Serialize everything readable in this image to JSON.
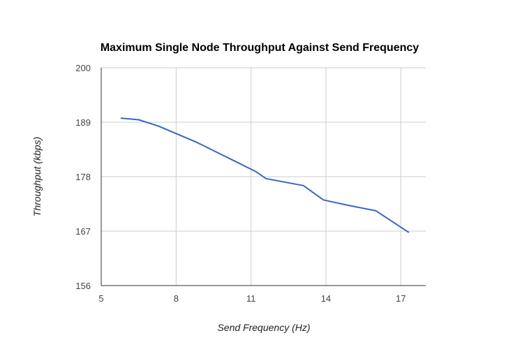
{
  "chart_data": {
    "type": "line",
    "title": "Maximum Single Node Throughput Against Send Frequency",
    "xlabel": "Send Frequency (Hz)",
    "ylabel": "Throughput (kbps)",
    "xlim": [
      5,
      18
    ],
    "ylim": [
      156,
      200
    ],
    "xticks": [
      5,
      8,
      11,
      14,
      17
    ],
    "yticks": [
      156,
      167,
      178,
      189,
      200
    ],
    "grid": true,
    "legend": "none",
    "series_color": "#3366cc",
    "series": [
      {
        "x": [
          5.8,
          6.5,
          7.3,
          8.0,
          8.8,
          9.6,
          10.4,
          11.2,
          11.6,
          13.1,
          13.9,
          14.9,
          16.0,
          17.3
        ],
        "y": [
          189.8,
          189.5,
          188.2,
          186.7,
          185.0,
          183.0,
          181.0,
          179.0,
          177.6,
          176.2,
          173.3,
          172.2,
          171.1,
          166.8
        ]
      }
    ]
  }
}
